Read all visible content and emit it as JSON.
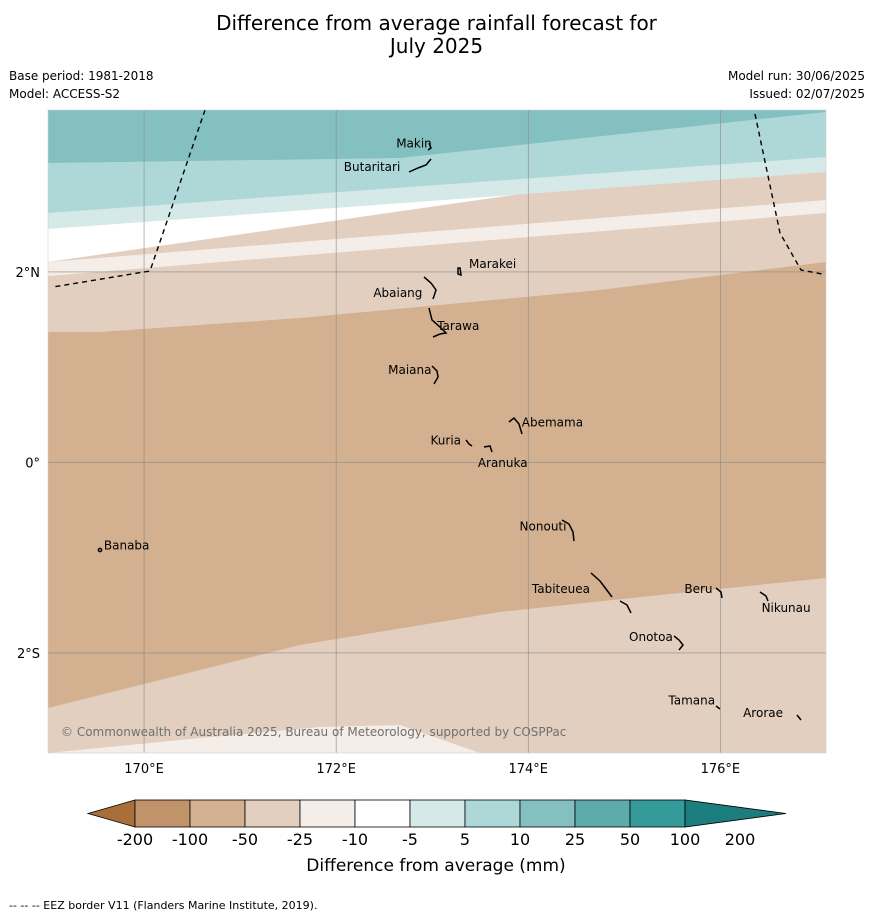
{
  "title": {
    "line1": "Difference from average rainfall forecast for",
    "line2": "July 2025"
  },
  "meta": {
    "base_period": "Base period: 1981-2018",
    "model": "Model: ACCESS-S2",
    "model_run": "Model run: 30/06/2025",
    "issued": "Issued: 02/07/2025"
  },
  "map": {
    "lon_range": [
      169,
      177.1
    ],
    "lat_range": [
      -3.05,
      3.7
    ],
    "lon_ticks": [
      {
        "value": 170,
        "label": "170°E"
      },
      {
        "value": 172,
        "label": "172°E"
      },
      {
        "value": 174,
        "label": "174°E"
      },
      {
        "value": 176,
        "label": "176°E"
      }
    ],
    "lat_ticks": [
      {
        "value": 2,
        "label": "2°N"
      },
      {
        "value": 0,
        "label": "0°"
      },
      {
        "value": -2,
        "label": "2°S"
      }
    ],
    "copyright": "© Commonwealth of Australia 2025, Bureau of Meteorology, supported by COSPPac",
    "places": [
      {
        "name": "Makin",
        "lon": 173.0,
        "lat": 3.35
      },
      {
        "name": "Butaritari",
        "lon": 172.85,
        "lat": 3.1
      },
      {
        "name": "Marakei",
        "lon": 173.3,
        "lat": 2.0
      },
      {
        "name": "Abaiang",
        "lon": 172.97,
        "lat": 1.8
      },
      {
        "name": "Tarawa",
        "lon": 173.0,
        "lat": 1.4
      },
      {
        "name": "Maiana",
        "lon": 173.02,
        "lat": 0.95
      },
      {
        "name": "Abemama",
        "lon": 173.87,
        "lat": 0.4
      },
      {
        "name": "Kuria",
        "lon": 173.42,
        "lat": 0.23
      },
      {
        "name": "Aranuka",
        "lon": 173.6,
        "lat": 0.16
      },
      {
        "name": "Nonouti",
        "lon": 174.43,
        "lat": -0.67
      },
      {
        "name": "Banaba",
        "lon": 169.53,
        "lat": -0.87
      },
      {
        "name": "Tabiteuea",
        "lon": 174.85,
        "lat": -1.33
      },
      {
        "name": "Beru",
        "lon": 176.0,
        "lat": -1.33
      },
      {
        "name": "Nikunau",
        "lon": 176.45,
        "lat": -1.38
      },
      {
        "name": "Onotoa",
        "lon": 175.57,
        "lat": -1.83
      },
      {
        "name": "Tamana",
        "lon": 175.98,
        "lat": -2.5
      },
      {
        "name": "Arorae",
        "lon": 176.82,
        "lat": -2.63
      }
    ]
  },
  "legend": {
    "title": "Difference from average (mm)",
    "tick_labels": [
      "-200",
      "-100",
      "-50",
      "-25",
      "-10",
      "-5",
      "5",
      "10",
      "25",
      "50",
      "100",
      "200"
    ],
    "colors": [
      "#a86f3a",
      "#c0936a",
      "#d2b090",
      "#e2cfbf",
      "#f4ede8",
      "#ffffff",
      "#d6e9e9",
      "#aed7d7",
      "#84c0c0",
      "#5dabab",
      "#359a9a",
      "#1b7d7d"
    ]
  },
  "footer": "--  --  -- EEZ border V11 (Flanders Marine Institute, 2019)."
}
